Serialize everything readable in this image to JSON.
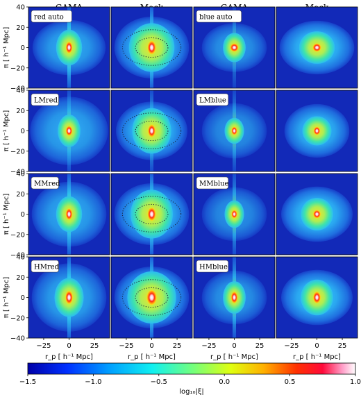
{
  "chart_data": {
    "type": "heatmap",
    "column_titles": [
      "GAMA",
      "Mock",
      "GAMA",
      "Mock"
    ],
    "panel_labels": [
      [
        "red auto",
        "",
        "blue auto",
        ""
      ],
      [
        "LMred",
        "",
        "LMblue",
        ""
      ],
      [
        "MMred",
        "",
        "MMblue",
        ""
      ],
      [
        "HMred",
        "",
        "HMblue",
        ""
      ]
    ],
    "xlabel": "r_p [ h⁻¹ Mpc]",
    "ylabel": "π [ h⁻¹ Mpc]",
    "xlim": [
      -40,
      40
    ],
    "ylim": [
      -40,
      40
    ],
    "x_ticks": [
      "−25",
      "0",
      "25"
    ],
    "x_tick_values": [
      -25,
      0,
      25
    ],
    "y_ticks": [
      "40",
      "20",
      "0",
      "−20",
      "−40"
    ],
    "y_tick_values": [
      40,
      20,
      0,
      -20,
      -40
    ],
    "colorbar": {
      "label": "log₁₀|ξ|",
      "range": [
        -1.5,
        1.0
      ],
      "ticks": [
        "−1.5",
        "−1.0",
        "−0.5",
        "0.0",
        "0.5",
        "1.0"
      ],
      "tick_values": [
        -1.5,
        -1.0,
        -0.5,
        0.0,
        0.5,
        1.0
      ],
      "colormap": "jet-like (blue → cyan → green → yellow → red → white)"
    },
    "dotted_contour_panels": [
      [
        false,
        true,
        false,
        false
      ],
      [
        false,
        true,
        false,
        false
      ],
      [
        false,
        true,
        false,
        false
      ],
      [
        false,
        true,
        false,
        false
      ]
    ]
  }
}
